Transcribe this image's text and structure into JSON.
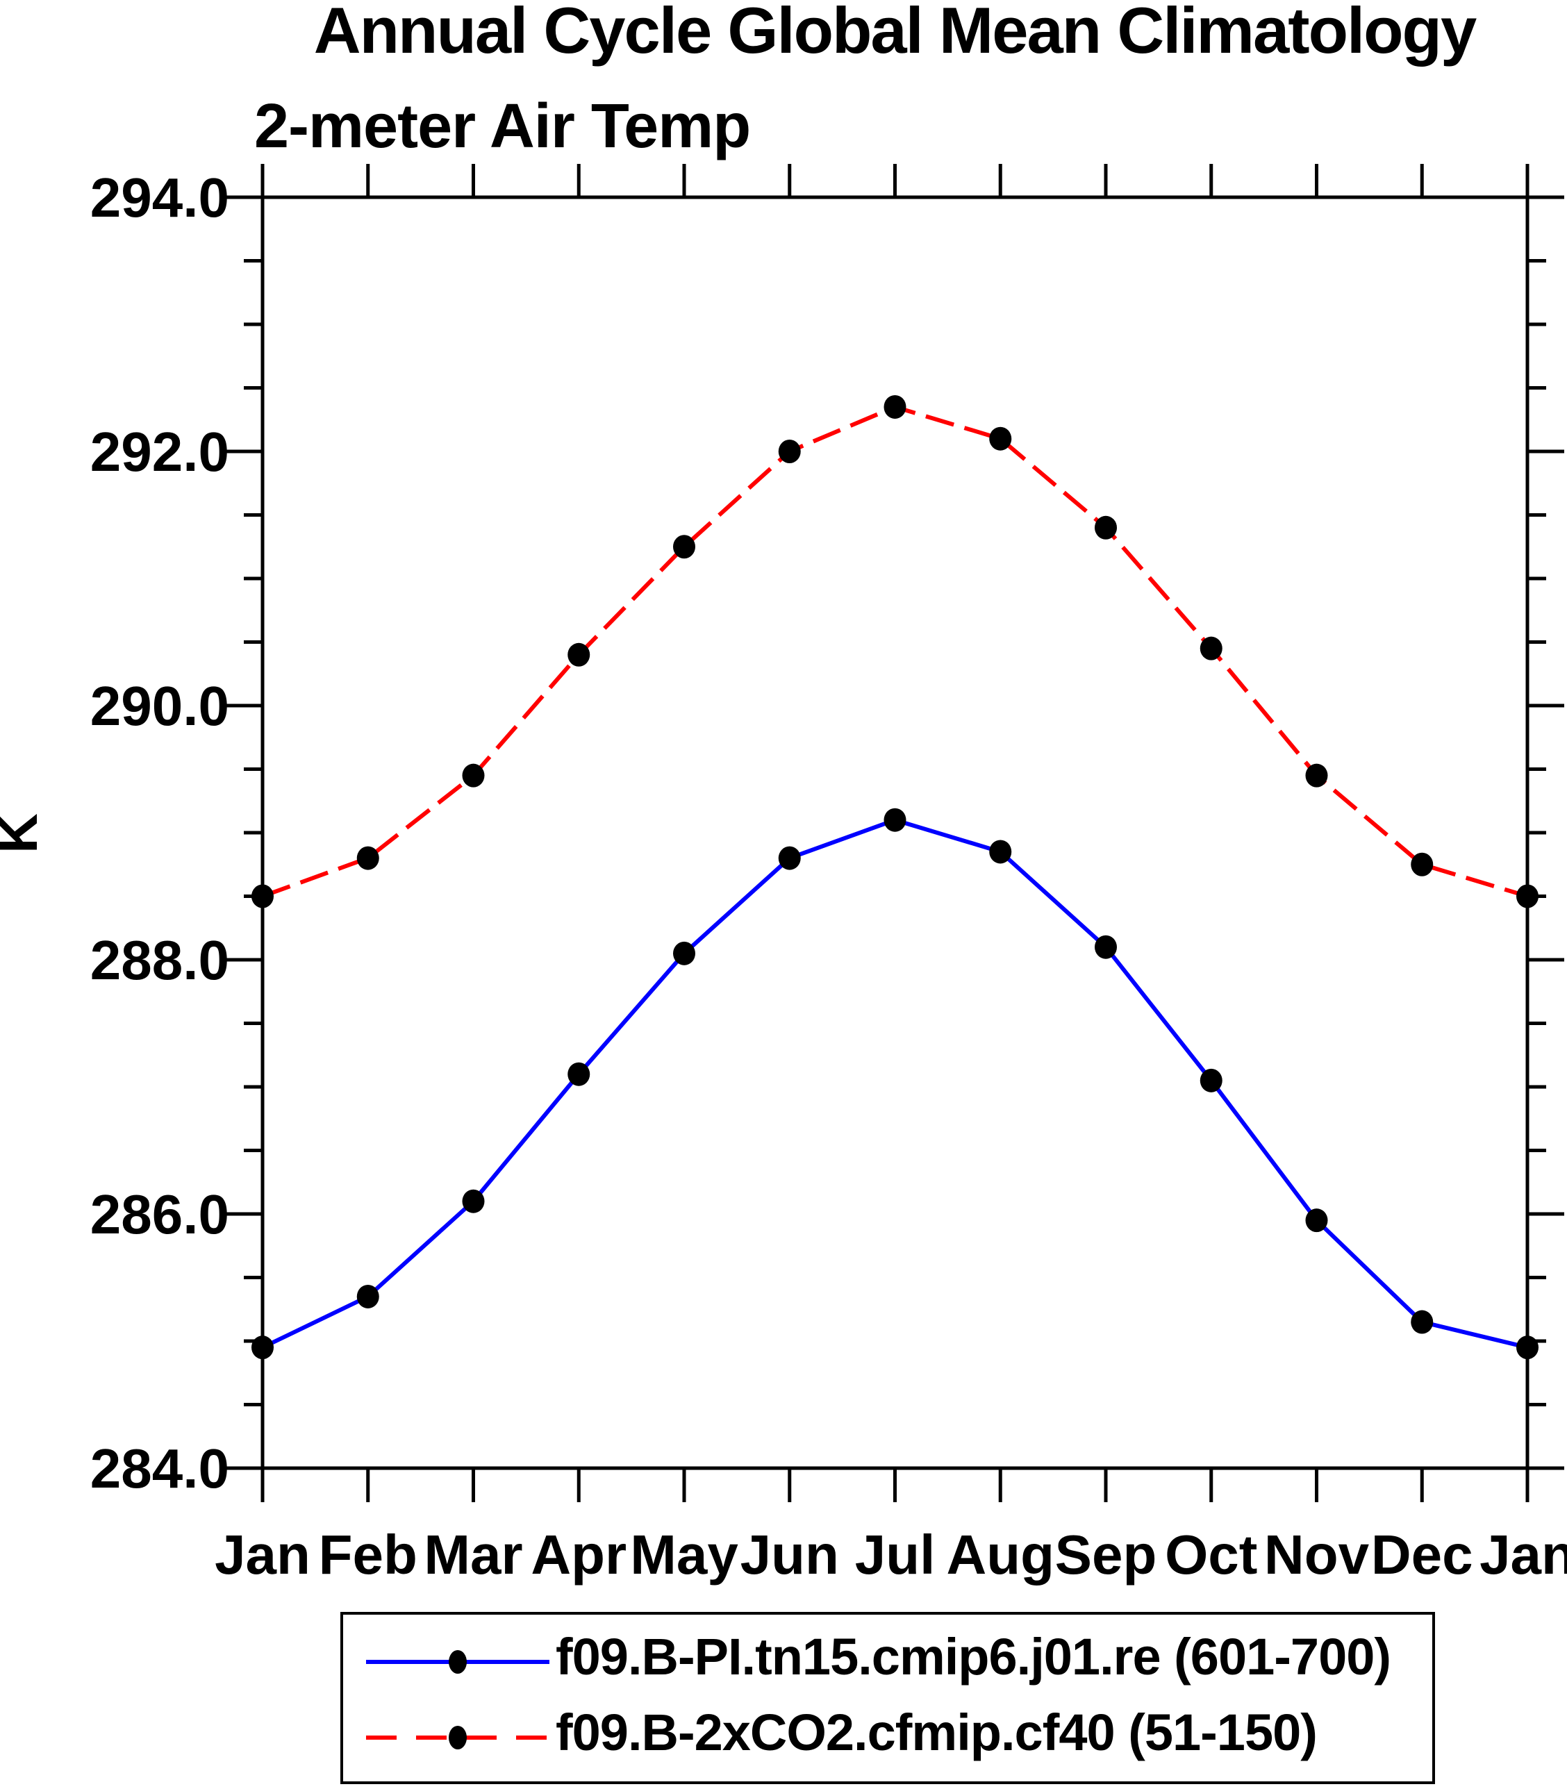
{
  "title": "Annual Cycle Global Mean Climatology",
  "subtitle": "2-meter Air Temp",
  "ylabel": "K",
  "chart_data": {
    "type": "line",
    "title": "Annual Cycle Global Mean Climatology",
    "subtitle": "2-meter Air Temp",
    "xlabel": "",
    "ylabel": "K",
    "categories": [
      "Jan",
      "Feb",
      "Mar",
      "Apr",
      "May",
      "Jun",
      "Jul",
      "Aug",
      "Sep",
      "Oct",
      "Nov",
      "Dec",
      "Jan"
    ],
    "series": [
      {
        "name": "f09.B-PI.tn15.cmip6.j01.re (601-700)",
        "color": "#0000ff",
        "line_style": "solid",
        "marker": "filled-circle",
        "marker_color": "#000000",
        "values": [
          284.95,
          285.35,
          286.1,
          287.1,
          288.05,
          288.8,
          289.1,
          288.85,
          288.1,
          287.05,
          285.95,
          285.15,
          284.95
        ]
      },
      {
        "name": "f09.B-2xCO2.cfmip.cf40 (51-150)",
        "color": "#ff0000",
        "line_style": "dashed",
        "marker": "filled-circle",
        "marker_color": "#000000",
        "values": [
          288.5,
          288.8,
          289.45,
          290.4,
          291.25,
          292.0,
          292.35,
          292.1,
          291.4,
          290.45,
          289.45,
          288.75,
          288.5
        ]
      }
    ],
    "ylim": [
      284.0,
      294.0
    ],
    "ytick_major_interval": 2.0,
    "ytick_minor_interval": 0.5,
    "ytick_labels": [
      "294.0",
      "292.0",
      "290.0",
      "288.0",
      "286.0",
      "284.0"
    ],
    "grid": false,
    "legend_position": "bottom"
  },
  "legend": {
    "entries": [
      {
        "label": "f09.B-PI.tn15.cmip6.j01.re (601-700)",
        "line_color": "#0000ff",
        "line_style": "solid",
        "marker": "filled-circle"
      },
      {
        "label": "f09.B-2xCO2.cfmip.cf40 (51-150)",
        "line_color": "#ff0000",
        "line_style": "dashed",
        "marker": "filled-circle"
      }
    ]
  },
  "colors": {
    "background": "#ffffff",
    "axis": "#000000",
    "text": "#000000",
    "marker": "#000000",
    "series_pi": "#0000ff",
    "series_2xco2": "#ff0000"
  }
}
